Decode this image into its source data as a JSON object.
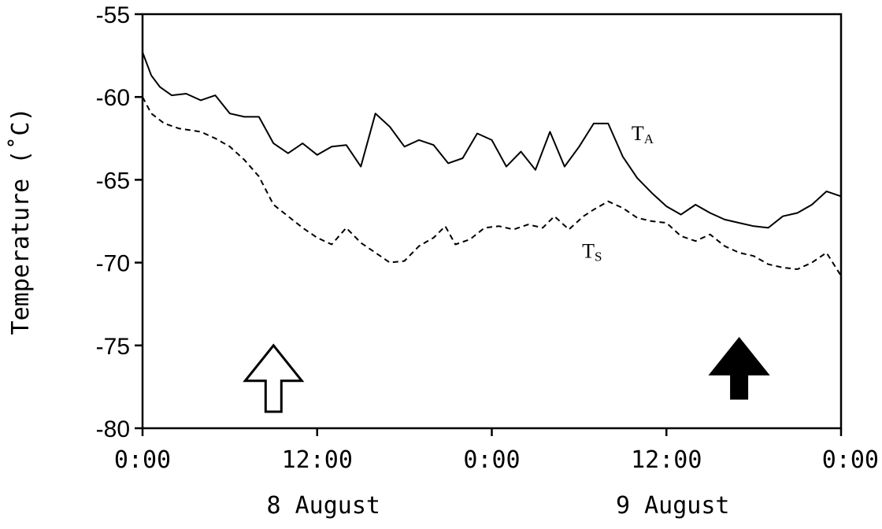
{
  "chart_data": {
    "type": "line",
    "title": "",
    "ylabel": "Temperature (˚C)",
    "xlabel": "",
    "x_unit": "hours",
    "xlim": [
      0,
      48
    ],
    "ylim": [
      -80,
      -55
    ],
    "x_ticks": [
      {
        "x": 0,
        "label": "0:00"
      },
      {
        "x": 12,
        "label": "12:00"
      },
      {
        "x": 24,
        "label": "0:00"
      },
      {
        "x": 36,
        "label": "12:00"
      },
      {
        "x": 48,
        "label": "0:00"
      }
    ],
    "y_ticks": [
      {
        "y": -55,
        "label": "-55"
      },
      {
        "y": -60,
        "label": "-60"
      },
      {
        "y": -65,
        "label": "-65"
      },
      {
        "y": -70,
        "label": "-70"
      },
      {
        "y": -75,
        "label": "-75"
      },
      {
        "y": -80,
        "label": "-80"
      }
    ],
    "date_labels": [
      {
        "x": 12,
        "label": "8 August"
      },
      {
        "x": 36,
        "label": "9 August"
      }
    ],
    "grid": false,
    "series": [
      {
        "name_main": "T",
        "name_sub": "A",
        "label_at": [
          33.6,
          -62.6
        ],
        "line_style": "solid",
        "color": "#000000",
        "points": [
          [
            0,
            -57.3
          ],
          [
            0.6,
            -58.7
          ],
          [
            1.2,
            -59.4
          ],
          [
            2,
            -59.9
          ],
          [
            3,
            -59.8
          ],
          [
            4,
            -60.2
          ],
          [
            5,
            -59.9
          ],
          [
            6,
            -61.0
          ],
          [
            7,
            -61.2
          ],
          [
            8,
            -61.2
          ],
          [
            9,
            -62.8
          ],
          [
            10,
            -63.4
          ],
          [
            11,
            -62.8
          ],
          [
            12,
            -63.5
          ],
          [
            13,
            -63.0
          ],
          [
            14,
            -62.9
          ],
          [
            15,
            -64.2
          ],
          [
            16,
            -61.0
          ],
          [
            17,
            -61.8
          ],
          [
            18,
            -63.0
          ],
          [
            19,
            -62.6
          ],
          [
            20,
            -62.9
          ],
          [
            21,
            -64.0
          ],
          [
            22,
            -63.7
          ],
          [
            23,
            -62.2
          ],
          [
            24,
            -62.6
          ],
          [
            25,
            -64.2
          ],
          [
            26,
            -63.3
          ],
          [
            27,
            -64.4
          ],
          [
            28,
            -62.1
          ],
          [
            29,
            -64.2
          ],
          [
            30,
            -63.0
          ],
          [
            31,
            -61.6
          ],
          [
            32,
            -61.6
          ],
          [
            33,
            -63.6
          ],
          [
            34,
            -64.9
          ],
          [
            35,
            -65.8
          ],
          [
            36,
            -66.6
          ],
          [
            37,
            -67.1
          ],
          [
            38,
            -66.5
          ],
          [
            39,
            -67.0
          ],
          [
            40,
            -67.4
          ],
          [
            41,
            -67.6
          ],
          [
            42,
            -67.8
          ],
          [
            43,
            -67.9
          ],
          [
            44,
            -67.2
          ],
          [
            45,
            -67.0
          ],
          [
            46,
            -66.5
          ],
          [
            47,
            -65.7
          ],
          [
            48,
            -66.0
          ]
        ]
      },
      {
        "name_main": "T",
        "name_sub": "S",
        "label_at": [
          30.2,
          -69.7
        ],
        "line_style": "dashed",
        "color": "#000000",
        "points": [
          [
            0,
            -60.0
          ],
          [
            0.6,
            -61.0
          ],
          [
            1.5,
            -61.6
          ],
          [
            2.5,
            -61.9
          ],
          [
            4,
            -62.1
          ],
          [
            5,
            -62.5
          ],
          [
            6,
            -63.0
          ],
          [
            7,
            -63.8
          ],
          [
            8,
            -64.8
          ],
          [
            9,
            -66.5
          ],
          [
            10,
            -67.2
          ],
          [
            11,
            -67.9
          ],
          [
            12,
            -68.5
          ],
          [
            13,
            -68.9
          ],
          [
            14,
            -67.9
          ],
          [
            15,
            -68.8
          ],
          [
            16,
            -69.4
          ],
          [
            17,
            -70.0
          ],
          [
            18,
            -69.9
          ],
          [
            19,
            -69.0
          ],
          [
            20,
            -68.5
          ],
          [
            20.8,
            -67.8
          ],
          [
            21.5,
            -68.9
          ],
          [
            22.5,
            -68.6
          ],
          [
            23.5,
            -67.9
          ],
          [
            24.5,
            -67.8
          ],
          [
            25.5,
            -68.0
          ],
          [
            26.5,
            -67.7
          ],
          [
            27.5,
            -67.9
          ],
          [
            28.3,
            -67.2
          ],
          [
            29.3,
            -68.0
          ],
          [
            30.3,
            -67.2
          ],
          [
            31,
            -66.8
          ],
          [
            32,
            -66.3
          ],
          [
            33,
            -66.7
          ],
          [
            34,
            -67.3
          ],
          [
            35,
            -67.5
          ],
          [
            36,
            -67.6
          ],
          [
            37,
            -68.4
          ],
          [
            38,
            -68.7
          ],
          [
            39,
            -68.3
          ],
          [
            40,
            -69.0
          ],
          [
            41,
            -69.4
          ],
          [
            42,
            -69.6
          ],
          [
            43,
            -70.1
          ],
          [
            44,
            -70.3
          ],
          [
            45,
            -70.4
          ],
          [
            46,
            -70.0
          ],
          [
            47,
            -69.4
          ],
          [
            48,
            -70.8
          ]
        ]
      }
    ],
    "annotations": [
      {
        "kind": "arrow-up-hollow",
        "x": 9,
        "tip_y": -75,
        "base_y": -79.0
      },
      {
        "kind": "arrow-up-filled",
        "x": 41,
        "tip_y": -74.6,
        "base_y": -78.2
      }
    ]
  }
}
